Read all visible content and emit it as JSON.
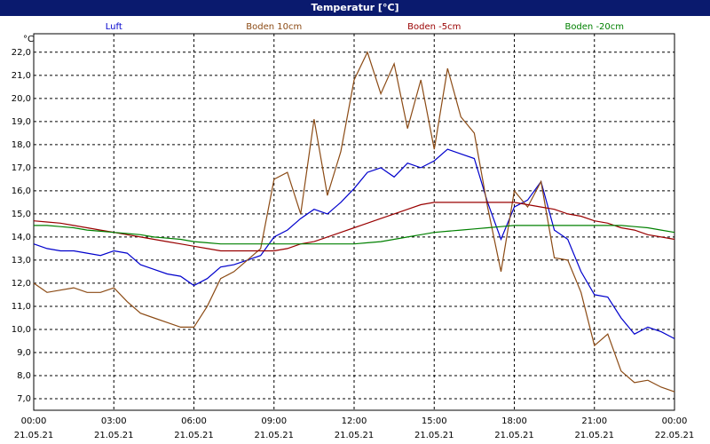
{
  "chart_data": {
    "type": "line",
    "title": "Temperatur [°C]",
    "y_unit": "°C",
    "x": [
      0,
      0.5,
      1,
      1.5,
      2,
      2.5,
      3,
      3.5,
      4,
      4.5,
      5,
      5.5,
      6,
      6.5,
      7,
      7.5,
      8,
      8.5,
      9,
      9.5,
      10,
      10.5,
      11,
      11.5,
      12,
      12.5,
      13,
      13.5,
      14,
      14.5,
      15,
      15.5,
      16,
      16.5,
      17,
      17.5,
      18,
      18.5,
      19,
      19.5,
      20,
      20.5,
      21,
      21.5,
      22,
      22.5,
      23,
      23.5,
      24
    ],
    "series": [
      {
        "name": "Luft",
        "color": "#0000cc",
        "values": [
          13.7,
          13.5,
          13.4,
          13.4,
          13.3,
          13.2,
          13.4,
          13.3,
          12.8,
          12.6,
          12.4,
          12.3,
          11.9,
          12.2,
          12.7,
          12.8,
          13.0,
          13.2,
          14.0,
          14.3,
          14.8,
          15.2,
          15.0,
          15.5,
          16.1,
          16.8,
          17.0,
          16.6,
          17.2,
          17.0,
          17.3,
          17.8,
          17.6,
          17.4,
          15.5,
          13.9,
          15.3,
          15.6,
          16.4,
          14.3,
          13.9,
          12.5,
          11.5,
          11.4,
          10.5,
          9.8,
          10.1,
          9.9,
          9.6
        ]
      },
      {
        "name": "Boden 10cm",
        "color": "#8b4a14",
        "values": [
          12.0,
          11.6,
          11.7,
          11.8,
          11.6,
          11.6,
          11.8,
          11.2,
          10.7,
          10.5,
          10.3,
          10.1,
          10.1,
          11.0,
          12.2,
          12.5,
          13.0,
          13.5,
          16.5,
          16.8,
          15.0,
          19.1,
          15.8,
          17.7,
          20.8,
          22.0,
          20.2,
          21.5,
          18.7,
          20.8,
          17.8,
          21.3,
          19.2,
          18.5,
          15.3,
          12.5,
          16.0,
          15.3,
          16.4,
          13.1,
          13.0,
          11.6,
          9.3,
          9.8,
          8.2,
          7.7,
          7.8,
          7.5,
          7.3
        ]
      },
      {
        "name": "Boden -5cm",
        "color": "#990000",
        "values": [
          14.7,
          14.65,
          14.6,
          14.5,
          14.4,
          14.3,
          14.2,
          14.1,
          14.0,
          13.9,
          13.8,
          13.7,
          13.6,
          13.5,
          13.4,
          13.4,
          13.4,
          13.4,
          13.4,
          13.5,
          13.7,
          13.8,
          14.0,
          14.2,
          14.4,
          14.6,
          14.8,
          15.0,
          15.2,
          15.4,
          15.5,
          15.5,
          15.5,
          15.5,
          15.5,
          15.5,
          15.5,
          15.4,
          15.3,
          15.2,
          15.0,
          14.9,
          14.7,
          14.6,
          14.4,
          14.3,
          14.1,
          14.0,
          13.9
        ]
      },
      {
        "name": "Boden -20cm",
        "color": "#008000",
        "values": [
          14.5,
          14.5,
          14.45,
          14.4,
          14.3,
          14.25,
          14.2,
          14.15,
          14.1,
          14.0,
          13.95,
          13.9,
          13.8,
          13.75,
          13.7,
          13.7,
          13.7,
          13.7,
          13.7,
          13.7,
          13.7,
          13.7,
          13.7,
          13.7,
          13.7,
          13.75,
          13.8,
          13.9,
          14.0,
          14.1,
          14.2,
          14.25,
          14.3,
          14.35,
          14.4,
          14.45,
          14.5,
          14.5,
          14.5,
          14.5,
          14.5,
          14.5,
          14.5,
          14.5,
          14.5,
          14.45,
          14.4,
          14.3,
          14.2
        ]
      }
    ],
    "xlim": [
      0,
      24
    ],
    "xticks": [
      {
        "value": 0,
        "label": "00:00"
      },
      {
        "value": 3,
        "label": "03:00"
      },
      {
        "value": 6,
        "label": "06:00"
      },
      {
        "value": 9,
        "label": "09:00"
      },
      {
        "value": 12,
        "label": "12:00"
      },
      {
        "value": 15,
        "label": "15:00"
      },
      {
        "value": 18,
        "label": "18:00"
      },
      {
        "value": 21,
        "label": "21:00"
      },
      {
        "value": 24,
        "label": "00:00"
      }
    ],
    "xtick_dates": [
      "21.05.21",
      "21.05.21",
      "21.05.21",
      "21.05.21",
      "21.05.21",
      "21.05.21",
      "21.05.21",
      "21.05.21",
      "22.05.21"
    ],
    "ylim": [
      6.5,
      22.8
    ],
    "yticks": [
      {
        "value": 7,
        "label": "7,0"
      },
      {
        "value": 8,
        "label": "8,0"
      },
      {
        "value": 9,
        "label": "9,0"
      },
      {
        "value": 10,
        "label": "10,0"
      },
      {
        "value": 11,
        "label": "11,0"
      },
      {
        "value": 12,
        "label": "12,0"
      },
      {
        "value": 13,
        "label": "13,0"
      },
      {
        "value": 14,
        "label": "14,0"
      },
      {
        "value": 15,
        "label": "15,0"
      },
      {
        "value": 16,
        "label": "16,0"
      },
      {
        "value": 17,
        "label": "17,0"
      },
      {
        "value": 18,
        "label": "18,0"
      },
      {
        "value": 19,
        "label": "19,0"
      },
      {
        "value": 20,
        "label": "20,0"
      },
      {
        "value": 21,
        "label": "21,0"
      },
      {
        "value": 22,
        "label": "22,0"
      }
    ],
    "grid": true
  }
}
